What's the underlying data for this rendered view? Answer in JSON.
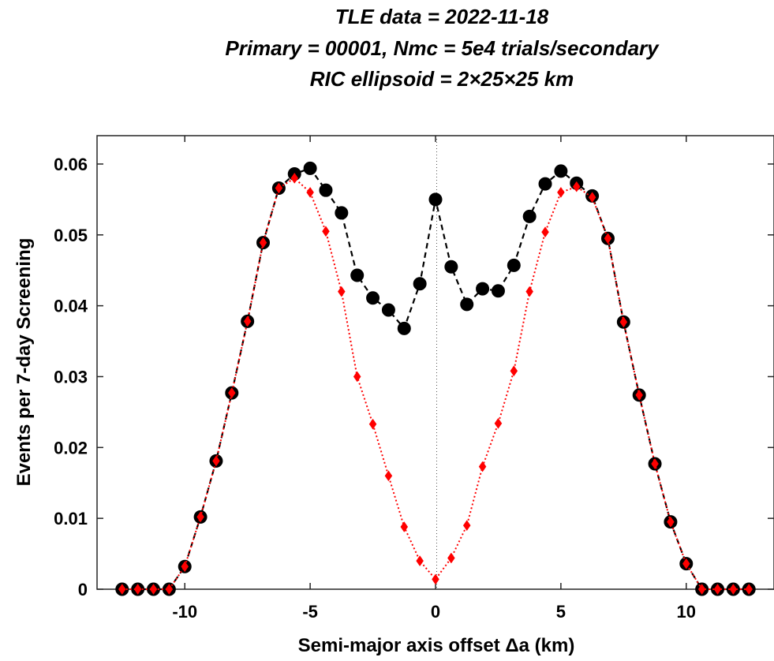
{
  "chart_data": {
    "type": "line",
    "title": [
      "TLE data = 2022-11-18",
      "Primary = 00001, Nmc = 5e4 trials/secondary",
      "RIC ellipsoid = 2×25×25 km"
    ],
    "xlabel": "Semi-major axis offset Δa (km)",
    "ylabel": "Events per 7-day Screening",
    "xlim": [
      -13.5,
      13.5
    ],
    "ylim": [
      0,
      0.064
    ],
    "xticks": [
      -10,
      -5,
      0,
      5,
      10
    ],
    "xtick_labels": [
      "-10",
      "-5",
      "0",
      "5",
      "10"
    ],
    "yticks": [
      0,
      0.01,
      0.02,
      0.03,
      0.04,
      0.05,
      0.06
    ],
    "ytick_labels": [
      "0",
      "0.01",
      "0.02",
      "0.03",
      "0.04",
      "0.05",
      "0.06"
    ],
    "grid": false,
    "zero_line": true,
    "x": [
      -12.5,
      -11.875,
      -11.25,
      -10.625,
      -10.0,
      -9.375,
      -8.75,
      -8.125,
      -7.5,
      -6.875,
      -6.25,
      -5.625,
      -5.0,
      -4.375,
      -3.75,
      -3.125,
      -2.5,
      -1.875,
      -1.25,
      -0.625,
      0.0,
      0.625,
      1.25,
      1.875,
      2.5,
      3.125,
      3.75,
      4.375,
      5.0,
      5.625,
      6.25,
      6.875,
      7.5,
      8.125,
      8.75,
      9.375,
      10.0,
      10.625,
      11.25,
      11.875,
      12.5
    ],
    "series": [
      {
        "color": "#000000",
        "style": "dashed",
        "marker": "circle",
        "values": [
          0,
          0,
          0,
          0,
          0.0032,
          0.0102,
          0.0181,
          0.0277,
          0.0378,
          0.0489,
          0.0566,
          0.0586,
          0.0594,
          0.0563,
          0.0531,
          0.0443,
          0.0411,
          0.0394,
          0.0368,
          0.0431,
          0.055,
          0.0455,
          0.0402,
          0.0424,
          0.0421,
          0.0457,
          0.0526,
          0.0572,
          0.059,
          0.0573,
          0.0555,
          0.0495,
          0.0377,
          0.0274,
          0.0177,
          0.0095,
          0.0036,
          0,
          0,
          0,
          0
        ]
      },
      {
        "color": "#ff0000",
        "style": "dotted",
        "marker": "diamond",
        "values": [
          0,
          0,
          0,
          0,
          0.0032,
          0.0102,
          0.0181,
          0.0277,
          0.0378,
          0.0489,
          0.0566,
          0.058,
          0.056,
          0.0505,
          0.042,
          0.03,
          0.0233,
          0.016,
          0.0088,
          0.004,
          0.0014,
          0.0044,
          0.009,
          0.0173,
          0.0234,
          0.0308,
          0.042,
          0.0504,
          0.056,
          0.0568,
          0.0553,
          0.0495,
          0.0377,
          0.0274,
          0.0177,
          0.0095,
          0.0036,
          0,
          0,
          0,
          0
        ]
      }
    ]
  }
}
